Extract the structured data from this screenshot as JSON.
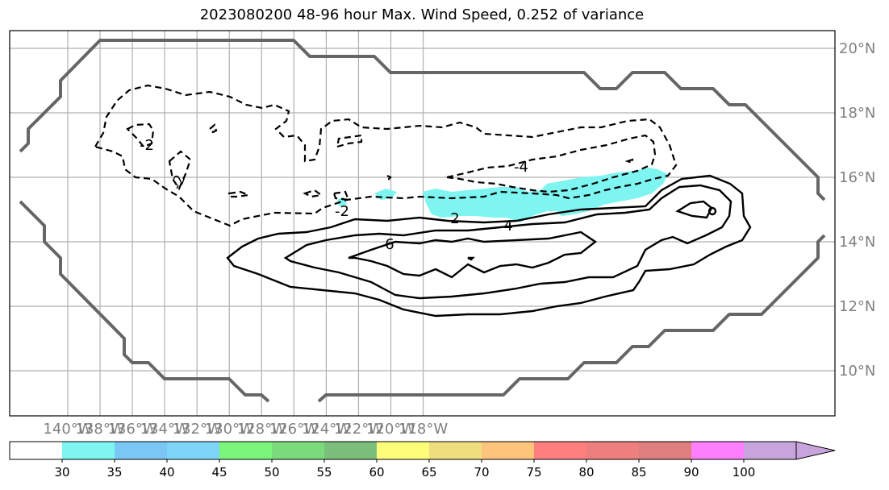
{
  "title": "2023080200 48-96 hour Max. Wind Speed, 0.252 of variance",
  "lon_ticks": [
    "140°W",
    "138°W",
    "136°W",
    "134°W",
    "132°W",
    "130°W",
    "128°W",
    "126°W",
    "124°W",
    "122°W",
    "120°W",
    "118°W"
  ],
  "lat_ticks": [
    "20°N",
    "18°N",
    "16°N",
    "14°N",
    "12°N",
    "10°N"
  ],
  "contour_labels": [
    "-2",
    "-2",
    "-2",
    "-2",
    "-4",
    "-2",
    "2",
    "4",
    "6",
    "0"
  ],
  "colorbar": {
    "ticks": [
      "30",
      "35",
      "40",
      "45",
      "50",
      "55",
      "60",
      "65",
      "70",
      "75",
      "80",
      "85",
      "90",
      "100"
    ],
    "colors": [
      "#ffffff",
      "#7ef5f0",
      "#7ac6f5",
      "#7dd6fa",
      "#7bf57a",
      "#7bdb7a",
      "#7bbf7a",
      "#fdfd7a",
      "#f0de7e",
      "#fec47b",
      "#fe7f7e",
      "#ed7f7e",
      "#de7f7e",
      "#fe7ffe",
      "#c8a4dc"
    ]
  },
  "colors": {
    "coastline": "#666666",
    "grid": "#b0b0b0",
    "shading": "#7ef5f0",
    "contour": "#000000",
    "tick_label": "#808080"
  }
}
